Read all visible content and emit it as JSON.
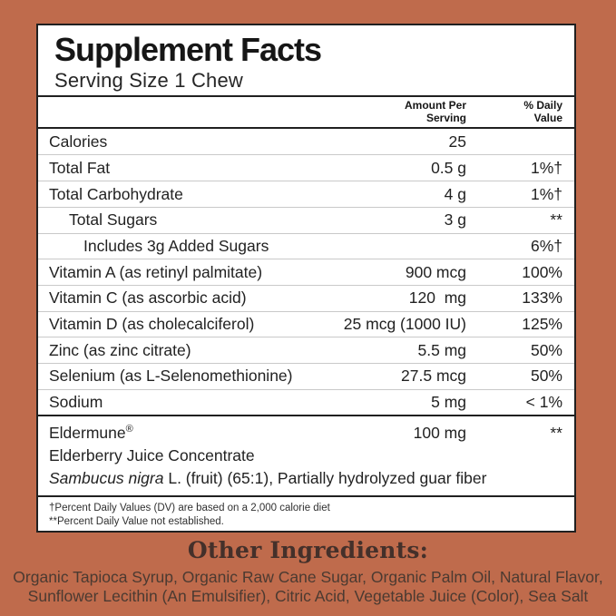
{
  "colors": {
    "background": "#bf6b4c",
    "panel": "#ffffff",
    "rule_dark": "#202020",
    "rule_light": "#c9c9c9",
    "table_text": "#222222",
    "footer_heading": "#44302a",
    "footer_text": "#4b3a31"
  },
  "panel": {
    "title": "Supplement Facts",
    "serving_size": "Serving Size 1 Chew"
  },
  "table": {
    "header": {
      "amount": "Amount Per\nServing",
      "dv": "% Daily\nValue"
    },
    "rows": [
      {
        "label": "Calories",
        "amount": "25",
        "dv": ""
      },
      {
        "label": "Total Fat",
        "amount": "0.5 g",
        "dv": "1%†"
      },
      {
        "label": "Total Carbohydrate",
        "amount": "4 g",
        "dv": "1%†"
      },
      {
        "label": "Total Sugars",
        "amount": "3 g",
        "dv": "**"
      },
      {
        "label": "Includes 3g Added Sugars",
        "amount": "",
        "dv": "6%†"
      },
      {
        "label": "Vitamin A (as retinyl palmitate)",
        "amount": "900 mcg",
        "dv": "100%"
      },
      {
        "label": "Vitamin C (as ascorbic acid)",
        "amount": "120  mg",
        "dv": "133%"
      },
      {
        "label": "Vitamin D (as cholecalciferol)",
        "amount": "25 mcg (1000 IU)",
        "dv": "125%"
      },
      {
        "label": "Zinc (as zinc citrate)",
        "amount": "5.5 mg",
        "dv": "50%"
      },
      {
        "label": "Selenium (as L-Selenomethionine)",
        "amount": "27.5 mcg",
        "dv": "50%"
      },
      {
        "label": "Sodium",
        "amount": "5 mg",
        "dv": "< 1%"
      }
    ]
  },
  "eldermune": {
    "name": "Eldermune",
    "reg_mark": "®",
    "amount": "100 mg",
    "dv": "**",
    "line2": "Elderberry Juice Concentrate",
    "latin": "Sambucus nigra",
    "line3_rest": " L. (fruit) (65:1), Partially hydrolyzed guar fiber"
  },
  "footnotes": [
    "†Percent Daily Values (DV) are based on a 2,000 calorie diet",
    "**Percent Daily Value not established."
  ],
  "other_ingredients": {
    "heading": "Other Ingredients:",
    "text": "Organic Tapioca Syrup, Organic Raw Cane Sugar, Organic Palm Oil, Natural Flavor, Sunflower Lecithin (An Emulsifier), Citric Acid, Vegetable Juice (Color), Sea Salt"
  }
}
